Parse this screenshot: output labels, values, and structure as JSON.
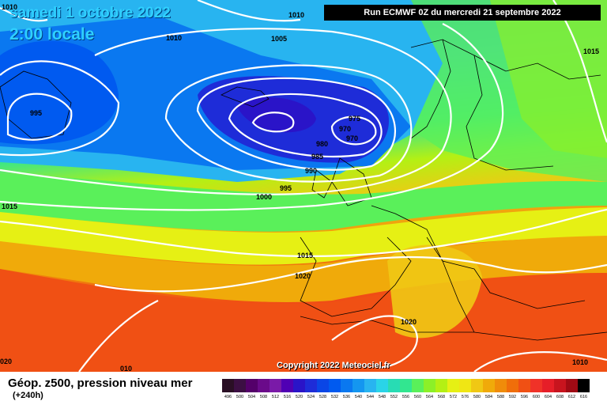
{
  "header": {
    "date": "samedi 1 octobre 2022",
    "time": "2:00 locale",
    "run": "Run ECMWF 0Z du mercredi 21 septembre 2022"
  },
  "copyright": "Copyright 2022 Meteociel.fr",
  "footer": {
    "title": "Géop. z500, pression niveau mer",
    "lead": "(+240h)"
  },
  "isobar_labels": [
    "1010",
    "1010",
    "1010",
    "1005",
    "1015",
    "995",
    "975",
    "970",
    "970",
    "980",
    "985",
    "990",
    "995",
    "1000",
    "1015",
    "1015",
    "1020",
    "1020",
    "1010",
    "020",
    "010"
  ],
  "scale": {
    "labels": [
      "496",
      "500",
      "504",
      "508",
      "512",
      "516",
      "520",
      "524",
      "528",
      "532",
      "536",
      "540",
      "544",
      "548",
      "552",
      "556",
      "560",
      "564",
      "568",
      "572",
      "576",
      "580",
      "584",
      "588",
      "592",
      "596",
      "600",
      "604",
      "608",
      "612",
      "616"
    ],
    "colors": [
      "#2a0f25",
      "#3c0f43",
      "#54006a",
      "#6a0a8a",
      "#7a1aa8",
      "#5000b4",
      "#2a14c8",
      "#1e2cd8",
      "#0a46e6",
      "#005af0",
      "#0a78f0",
      "#1496f0",
      "#28b4f0",
      "#2ad4e8",
      "#28dcb4",
      "#32e690",
      "#5af05a",
      "#8cf028",
      "#b4f014",
      "#e6f014",
      "#f0e614",
      "#f0c814",
      "#f0aa0a",
      "#f08c0a",
      "#f06e0a",
      "#f05014",
      "#f03228",
      "#e61e28",
      "#c8141e",
      "#a00a14",
      "#000000"
    ]
  }
}
